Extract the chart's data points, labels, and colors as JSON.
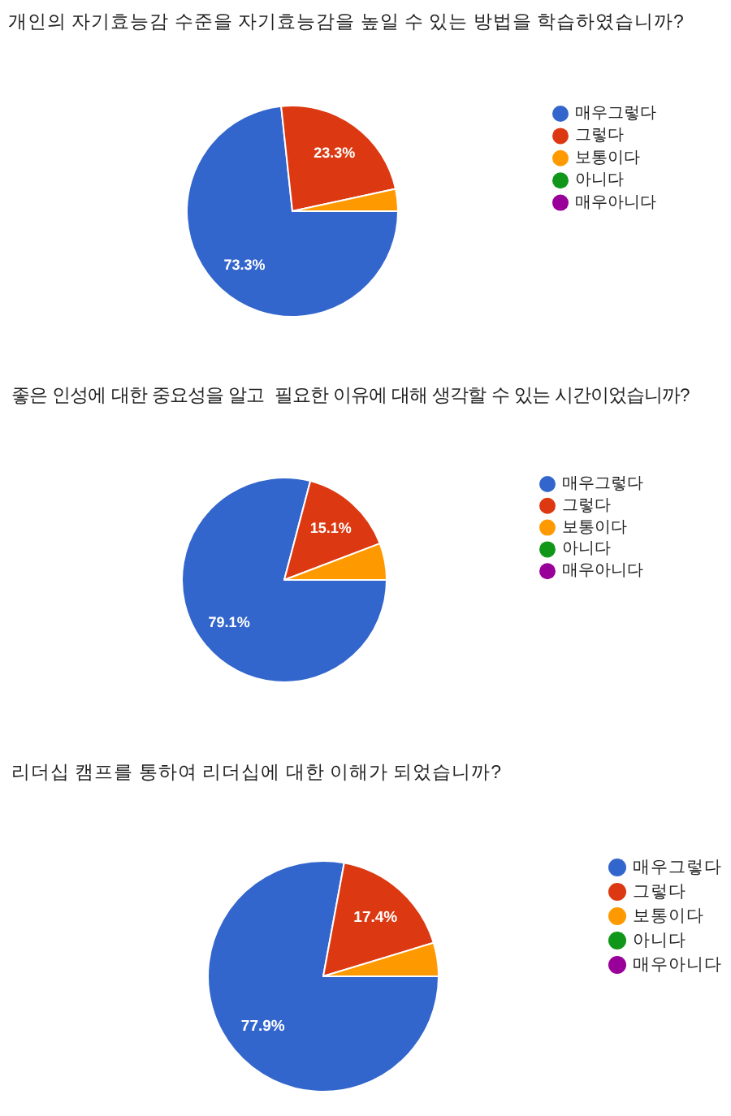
{
  "chart_data": [
    {
      "type": "pie",
      "title": "개인의 자기효능감 수준을 자기효능감을 높일 수 있는 방법을 학습하였습니까?",
      "categories": [
        "매우그렇다",
        "그렇다",
        "보통이다",
        "아니다",
        "매우아니다"
      ],
      "values": [
        73.3,
        23.3,
        3.4,
        0,
        0
      ],
      "colors": [
        "#3366cc",
        "#dc3912",
        "#ff9900",
        "#109618",
        "#990099"
      ],
      "value_labels": [
        "73.3%",
        "23.3%",
        null,
        null,
        null
      ],
      "legend": "right"
    },
    {
      "type": "pie",
      "title": "좋은 인성에 대한 중요성을 알고  필요한 이유에 대해 생각할 수 있는 시간이었습니까?",
      "categories": [
        "매우그렇다",
        "그렇다",
        "보통이다",
        "아니다",
        "매우아니다"
      ],
      "values": [
        79.1,
        15.1,
        5.8,
        0,
        0
      ],
      "colors": [
        "#3366cc",
        "#dc3912",
        "#ff9900",
        "#109618",
        "#990099"
      ],
      "value_labels": [
        "79.1%",
        "15.1%",
        null,
        null,
        null
      ],
      "legend": "right"
    },
    {
      "type": "pie",
      "title": "리더십 캠프를 통하여 리더십에 대한 이해가 되었습니까?",
      "categories": [
        "매우그렇다",
        "그렇다",
        "보통이다",
        "아니다",
        "매우아니다"
      ],
      "values": [
        77.9,
        17.4,
        4.7,
        0,
        0
      ],
      "colors": [
        "#3366cc",
        "#dc3912",
        "#ff9900",
        "#109618",
        "#990099"
      ],
      "value_labels": [
        "77.9%",
        "17.4%",
        null,
        null,
        null
      ],
      "legend": "right"
    }
  ]
}
